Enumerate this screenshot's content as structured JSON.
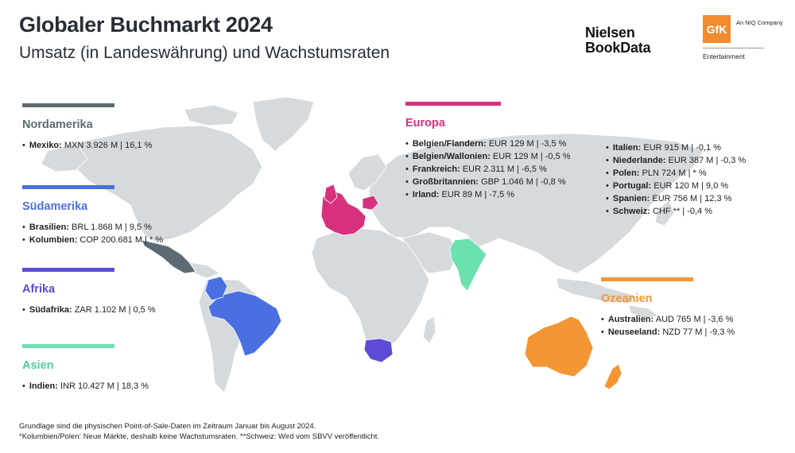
{
  "header": {
    "title": "Globaler Buchmarkt 2024",
    "subtitle": "Umsatz (in Landeswährung) und Wachstumsraten"
  },
  "logos": {
    "nielsen_line1": "Nielsen",
    "nielsen_line2": "BookData",
    "gfk": "GfK",
    "gfk_tagline": "An NIQ Company",
    "gfk_division": "Entertainment"
  },
  "colors": {
    "land": "#d6dadd",
    "nordamerika": "#5c6b73",
    "suedamerika": "#4a6fe0",
    "afrika": "#5b4bd6",
    "asien": "#6de0b0",
    "europa": "#d9307e",
    "ozeanien": "#f59634"
  },
  "regions": {
    "nordamerika": {
      "name": "Nordamerika",
      "items": [
        {
          "country": "Mexiko:",
          "value": " MXN 3.926 M | 16,1 %"
        }
      ]
    },
    "suedamerika": {
      "name": "Südamerika",
      "items": [
        {
          "country": "Brasilien:",
          "value": " BRL 1.868 M | 9,5 %"
        },
        {
          "country": "Kolumbien:",
          "value": " COP 200.681 M | * %"
        }
      ]
    },
    "afrika": {
      "name": "Afrika",
      "items": [
        {
          "country": "Südafrika:",
          "value": " ZAR 1.102 M | 0,5 %"
        }
      ]
    },
    "asien": {
      "name": "Asien",
      "items": [
        {
          "country": "Indien:",
          "value": " INR 10.427 M | 18,3 %"
        }
      ]
    },
    "europa": {
      "name": "Europa",
      "items_left": [
        {
          "country": "Belgien/Flandern:",
          "value": " EUR 129 M | -3,5 %"
        },
        {
          "country": "Belgien/Wallonien:",
          "value": " EUR 129 M | -0,5 %"
        },
        {
          "country": "Frankreich:",
          "value": " EUR 2.311 M | -6,5 %"
        },
        {
          "country": "Großbritannien:",
          "value": " GBP 1.046 M | -0,8 %"
        },
        {
          "country": "Irland:",
          "value": " EUR 89 M | -7,5 %"
        }
      ],
      "items_right": [
        {
          "country": "Italien:",
          "value": " EUR 915 M | -0,1 %"
        },
        {
          "country": "Niederlande:",
          "value": " EUR 387 M | -0,3 %"
        },
        {
          "country": "Polen:",
          "value": " PLN 724 M | * %"
        },
        {
          "country": "Portugal:",
          "value": " EUR 120 M | 9,0 %"
        },
        {
          "country": "Spanien:",
          "value": " EUR 756 M | 12,3 %"
        },
        {
          "country": "Schweiz:",
          "value": " CHF ** | -0,4 %"
        }
      ]
    },
    "ozeanien": {
      "name": "Ozeanien",
      "items": [
        {
          "country": "Australien:",
          "value": " AUD 765 M | -3,6 %"
        },
        {
          "country": "Neuseeland:",
          "value": " NZD 77 M | -9,3 %"
        }
      ]
    }
  },
  "footnote": {
    "line1": "Grundlage sind die physischen Point-of-Sale-Daten im Zeitraum Januar bis August 2024.",
    "line2": "*Kolumbien/Polen: Neue Märkte, deshalb keine Wachstumsraten. **Schweiz: Wird vom SBVV veröffentlicht."
  }
}
